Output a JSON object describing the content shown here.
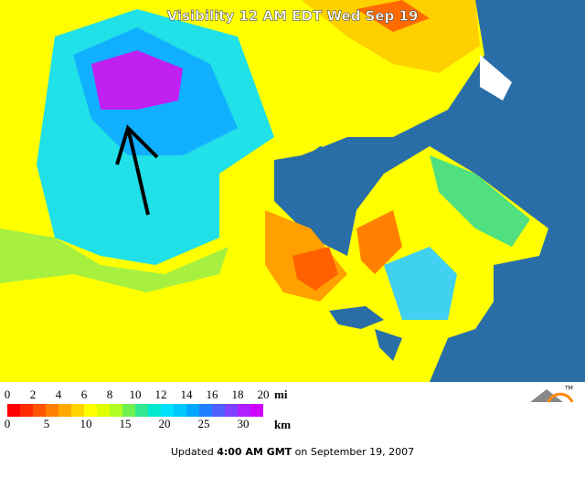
{
  "map": {
    "title": "Visibility 12 AM EDT Wed Sep 19"
  },
  "legend": {
    "mi_unit": "mi",
    "mi_labels": [
      "0",
      "2",
      "4",
      "6",
      "8",
      "10",
      "12",
      "14",
      "16",
      "18",
      "20"
    ],
    "km_unit": "km",
    "km_labels": [
      "0",
      "5",
      "10",
      "15",
      "20",
      "25",
      "30"
    ],
    "colors": [
      "#ff0000",
      "#ff2a00",
      "#ff5500",
      "#ff7f00",
      "#ffaa00",
      "#ffd400",
      "#ffff00",
      "#e0ff00",
      "#b0ff20",
      "#70f050",
      "#30e890",
      "#00e8d0",
      "#00e0ff",
      "#00c8ff",
      "#00a8ff",
      "#2080ff",
      "#5060ff",
      "#8040ff",
      "#b020ff",
      "#d000ff"
    ]
  },
  "logo": {
    "mark": "TM"
  },
  "footer": {
    "prefix": "Updated",
    "time": "4:00 AM GMT",
    "suffix": "on September 19, 2007"
  }
}
